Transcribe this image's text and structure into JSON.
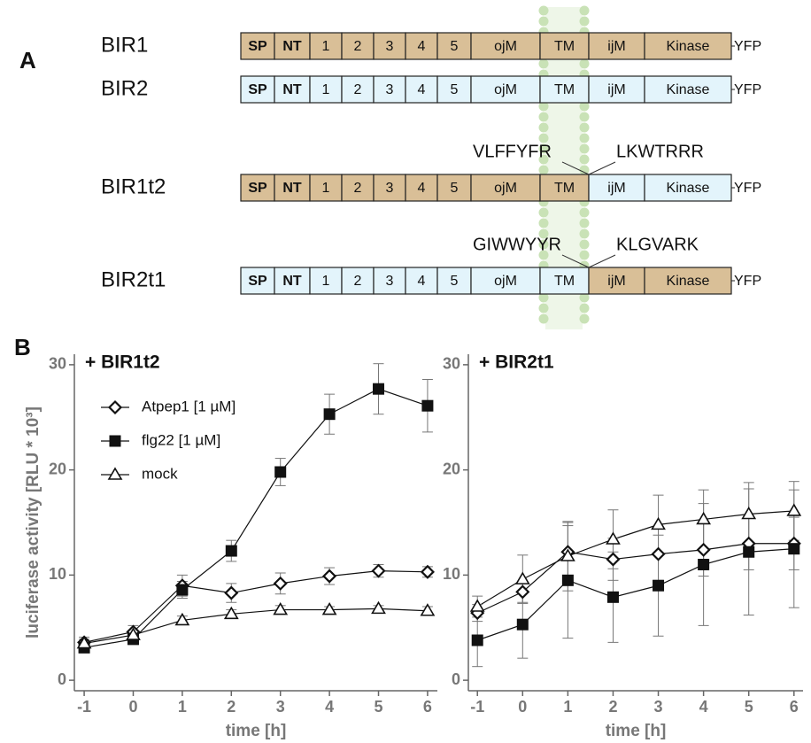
{
  "diagram": {
    "panel": "A",
    "domains": [
      "SP",
      "NT",
      "1",
      "2",
      "3",
      "4",
      "5",
      "ojM",
      "TM",
      "ijM",
      "Kinase"
    ],
    "tag": "YFP",
    "constructs": [
      {
        "name": "BIR1",
        "colors": [
          "#d9bf97",
          "#d9bf97",
          "#d9bf97",
          "#d9bf97",
          "#d9bf97",
          "#d9bf97",
          "#d9bf97",
          "#d9bf97",
          "#d9bf97",
          "#d9bf97",
          "#d9bf97"
        ]
      },
      {
        "name": "BIR2",
        "colors": [
          "#e3f4fb",
          "#e3f4fb",
          "#e3f4fb",
          "#e3f4fb",
          "#e3f4fb",
          "#e3f4fb",
          "#e3f4fb",
          "#e3f4fb",
          "#e3f4fb",
          "#e3f4fb",
          "#e3f4fb"
        ]
      },
      {
        "name": "BIR1t2",
        "colors": [
          "#d9bf97",
          "#d9bf97",
          "#d9bf97",
          "#d9bf97",
          "#d9bf97",
          "#d9bf97",
          "#d9bf97",
          "#d9bf97",
          "#d9bf97",
          "#e3f4fb",
          "#e3f4fb"
        ],
        "junction": [
          "VLFFYFR",
          "LKWTRRR"
        ]
      },
      {
        "name": "BIR2t1",
        "colors": [
          "#e3f4fb",
          "#e3f4fb",
          "#e3f4fb",
          "#e3f4fb",
          "#e3f4fb",
          "#e3f4fb",
          "#e3f4fb",
          "#e3f4fb",
          "#e3f4fb",
          "#d9bf97",
          "#d9bf97"
        ],
        "junction": [
          "GIWWYYR",
          "KLGVARK"
        ]
      }
    ]
  },
  "panel_b": "B",
  "chart_data": [
    {
      "type": "line",
      "title": "+ BIR1t2",
      "x_label": "time [h]",
      "y_label": "luciferase activity [RLU * 10³]",
      "x": [
        -1,
        0,
        1,
        2,
        3,
        4,
        5,
        6
      ],
      "xlim": [
        -1.2,
        6.2
      ],
      "xticks": [
        -1,
        0,
        1,
        2,
        3,
        4,
        5,
        6
      ],
      "ylim": [
        -1,
        31
      ],
      "yticks": [
        0,
        10,
        20,
        30
      ],
      "legend": "upper left",
      "series": [
        {
          "name": "Atpep1 [1 µM]",
          "color": "#111111",
          "marker": "diamond",
          "values": [
            3.6,
            4.6,
            9.0,
            8.3,
            9.2,
            9.9,
            10.4,
            10.3
          ],
          "errors": [
            0.5,
            0.6,
            1.0,
            0.9,
            1.0,
            0.8,
            0.6,
            0.5
          ]
        },
        {
          "name": "flg22 [1 µM]",
          "color": "#111111",
          "marker": "square",
          "values": [
            3.1,
            3.9,
            8.6,
            12.3,
            19.8,
            25.3,
            27.7,
            26.1
          ],
          "errors": [
            0.5,
            0.5,
            0.8,
            1.0,
            1.3,
            1.9,
            2.4,
            2.5
          ]
        },
        {
          "name": "mock",
          "color": "#111111",
          "marker": "triangle",
          "values": [
            3.5,
            4.3,
            5.7,
            6.3,
            6.7,
            6.7,
            6.8,
            6.6
          ],
          "errors": [
            0.4,
            0.4,
            0.4,
            0.4,
            0.4,
            0.3,
            0.3,
            0.4
          ]
        }
      ]
    },
    {
      "type": "line",
      "title": "+ BIR2t1",
      "x_label": "time [h]",
      "x": [
        -1,
        0,
        1,
        2,
        3,
        4,
        5,
        6
      ],
      "xlim": [
        -1.2,
        6.2
      ],
      "xticks": [
        -1,
        0,
        1,
        2,
        3,
        4,
        5,
        6
      ],
      "ylim": [
        -1,
        31
      ],
      "yticks": [
        0,
        10,
        20,
        30
      ],
      "series": [
        {
          "color": "#111111",
          "marker": "diamond",
          "values": [
            6.4,
            8.4,
            12.2,
            11.5,
            12.0,
            12.4,
            13.0,
            13.0
          ],
          "errors": [
            0.8,
            1.0,
            2.5,
            2.0,
            2.5,
            2.5,
            2.5,
            2.5
          ]
        },
        {
          "color": "#111111",
          "marker": "square",
          "values": [
            3.8,
            5.3,
            9.5,
            7.9,
            9.0,
            11.0,
            12.2,
            12.5
          ],
          "errors": [
            2.5,
            3.2,
            5.5,
            4.3,
            4.8,
            5.8,
            6.0,
            5.6
          ]
        },
        {
          "color": "#111111",
          "marker": "triangle",
          "values": [
            7.0,
            9.6,
            11.8,
            13.4,
            14.8,
            15.3,
            15.8,
            16.1
          ],
          "errors": [
            1.0,
            2.3,
            3.3,
            2.8,
            2.8,
            2.8,
            3.0,
            2.8
          ]
        }
      ]
    }
  ]
}
